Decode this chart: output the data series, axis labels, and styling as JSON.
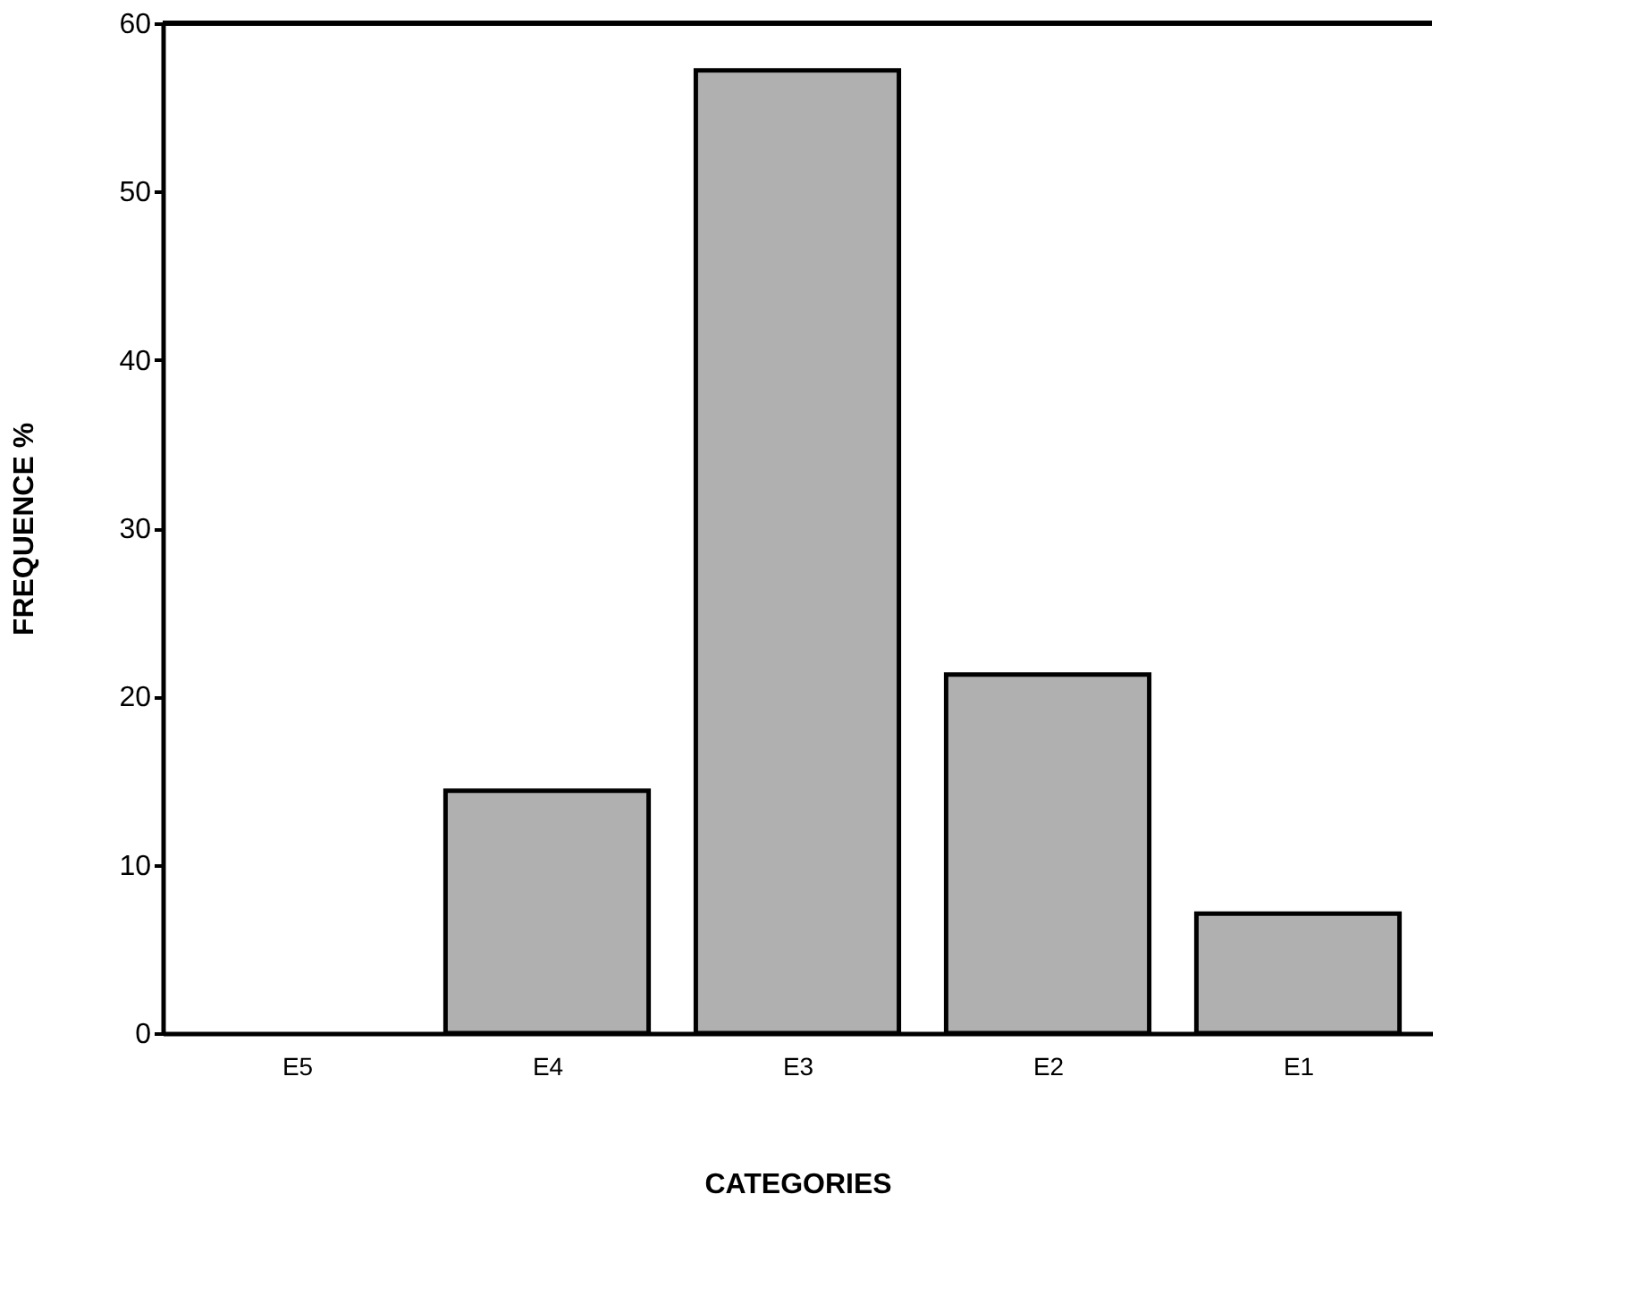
{
  "chart_data": {
    "type": "bar",
    "xlabel": "CATEGORIES",
    "ylabel": "FREQUENCE %",
    "categories": [
      "E5",
      "E4",
      "E3",
      "E2",
      "E1"
    ],
    "values": [
      0,
      14.4,
      57.2,
      21.3,
      7.1
    ],
    "color": "#b0b0b0",
    "ylim": [
      0,
      60
    ],
    "yticks": [
      0,
      10,
      20,
      30,
      40,
      50,
      60
    ],
    "grid": false
  }
}
